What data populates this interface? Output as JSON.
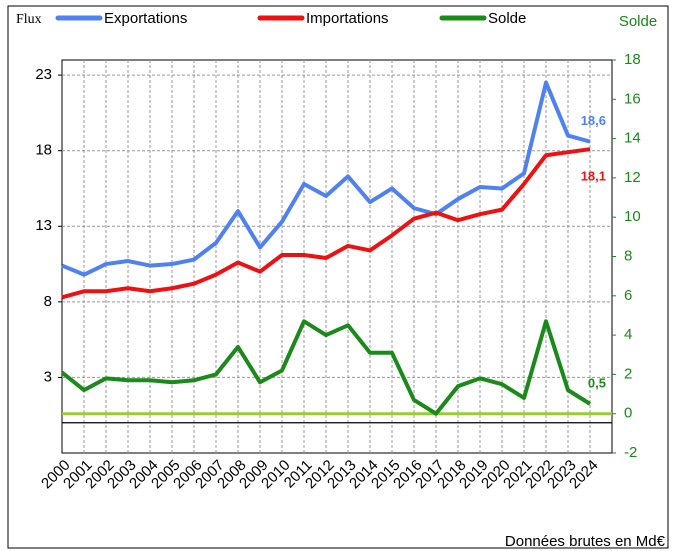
{
  "chart_data": {
    "type": "line",
    "y_label": "Flux",
    "y2_label": "Solde",
    "note": "Données brutes en Md€",
    "categories": [
      "2000",
      "2001",
      "2002",
      "2003",
      "2004",
      "2005",
      "2006",
      "2007",
      "2008",
      "2009",
      "2010",
      "2011",
      "2012",
      "2013",
      "2014",
      "2015",
      "2016",
      "2017",
      "2018",
      "2019",
      "2020",
      "2021",
      "2022",
      "2023",
      "2024"
    ],
    "series": [
      {
        "name": "Exportations",
        "color": "#4f81f0",
        "values": [
          10.4,
          9.8,
          10.5,
          10.7,
          10.4,
          10.5,
          10.8,
          11.9,
          14.0,
          11.6,
          13.3,
          15.8,
          15.0,
          16.3,
          14.6,
          15.5,
          14.2,
          13.8,
          14.8,
          15.6,
          15.5,
          16.5,
          22.5,
          19.0,
          18.6
        ],
        "value_labels": [
          null,
          null,
          null,
          null,
          null,
          null,
          null,
          null,
          null,
          null,
          null,
          null,
          null,
          null,
          null,
          null,
          null,
          null,
          null,
          null,
          null,
          null,
          null,
          null,
          "18,6"
        ]
      },
      {
        "name": "Importations",
        "color": "#ee1111",
        "values": [
          8.3,
          8.7,
          8.7,
          8.9,
          8.7,
          8.9,
          9.2,
          9.8,
          10.6,
          10.0,
          11.1,
          11.1,
          10.9,
          11.7,
          11.4,
          12.4,
          13.5,
          13.9,
          13.4,
          13.8,
          14.1,
          15.8,
          17.7,
          17.9,
          18.1
        ],
        "value_labels": [
          null,
          null,
          null,
          null,
          null,
          null,
          null,
          null,
          null,
          null,
          null,
          null,
          null,
          null,
          null,
          null,
          null,
          null,
          null,
          null,
          null,
          null,
          null,
          null,
          "18,1"
        ]
      },
      {
        "name": "Solde",
        "color": "#1a8a1a",
        "axis": "y2",
        "values": [
          2.1,
          1.2,
          1.8,
          1.7,
          1.7,
          1.6,
          1.7,
          2.0,
          3.4,
          1.6,
          2.2,
          4.7,
          4.0,
          4.5,
          3.1,
          3.1,
          0.7,
          0.0,
          1.4,
          1.8,
          1.5,
          0.8,
          4.7,
          1.2,
          0.5
        ],
        "value_labels": [
          null,
          null,
          null,
          null,
          null,
          null,
          null,
          null,
          null,
          null,
          null,
          null,
          null,
          null,
          null,
          null,
          null,
          null,
          null,
          null,
          null,
          null,
          null,
          null,
          "0,5"
        ]
      }
    ],
    "ylim": [
      -2,
      24
    ],
    "yticks": [
      3,
      8,
      13,
      18,
      23
    ],
    "y2lim": [
      -2,
      18
    ],
    "y2ticks": [
      -2,
      0,
      2,
      4,
      6,
      8,
      10,
      12,
      14,
      16,
      18
    ],
    "grid": true
  }
}
